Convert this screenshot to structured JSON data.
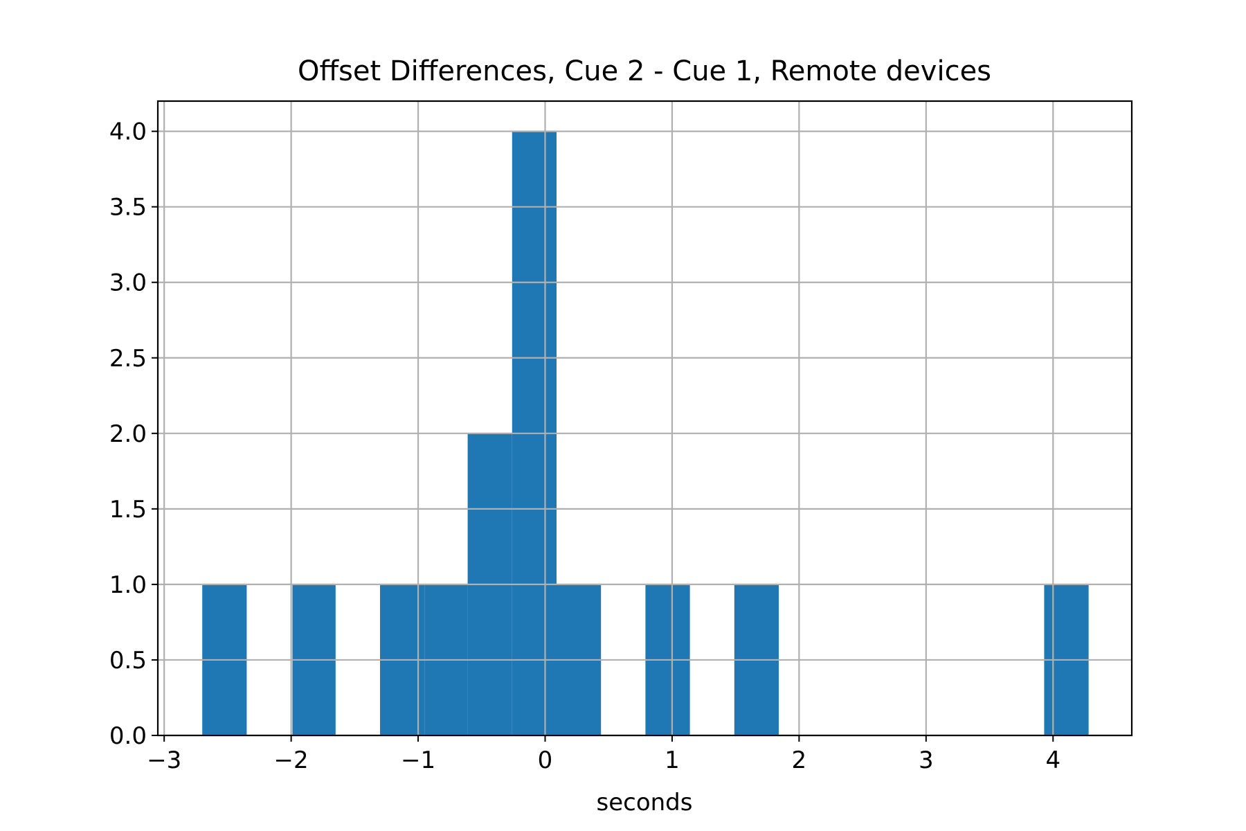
{
  "chart_data": {
    "type": "bar",
    "title": "Offset Differences, Cue 2 - Cue 1, Remote devices",
    "xlabel": "seconds",
    "ylabel": "",
    "xlim": [
      -3.05,
      4.62
    ],
    "ylim": [
      0,
      4.2
    ],
    "x_ticks": [
      -3,
      -2,
      -1,
      0,
      1,
      2,
      3,
      4
    ],
    "x_tick_labels": [
      "−3",
      "−2",
      "−1",
      "0",
      "1",
      "2",
      "3",
      "4"
    ],
    "y_ticks": [
      0,
      0.5,
      1,
      1.5,
      2,
      2.5,
      3,
      3.5,
      4
    ],
    "y_tick_labels": [
      "0.0",
      "0.5",
      "1.0",
      "1.5",
      "2.0",
      "2.5",
      "3.0",
      "3.5",
      "4.0"
    ],
    "grid": true,
    "bar_color": "#1f77b4",
    "bins": [
      {
        "x0": -2.7,
        "x1": -2.35,
        "count": 1
      },
      {
        "x0": -1.99,
        "x1": -1.65,
        "count": 1
      },
      {
        "x0": -1.3,
        "x1": -0.95,
        "count": 1
      },
      {
        "x0": -0.95,
        "x1": -0.61,
        "count": 1
      },
      {
        "x0": -0.61,
        "x1": -0.26,
        "count": 2
      },
      {
        "x0": -0.26,
        "x1": 0.09,
        "count": 4
      },
      {
        "x0": 0.09,
        "x1": 0.44,
        "count": 1
      },
      {
        "x0": 0.79,
        "x1": 1.14,
        "count": 1
      },
      {
        "x0": 1.49,
        "x1": 1.84,
        "count": 1
      },
      {
        "x0": 3.93,
        "x1": 4.28,
        "count": 1
      }
    ]
  }
}
